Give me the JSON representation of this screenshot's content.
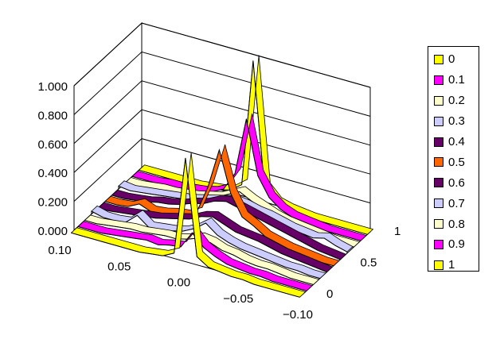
{
  "chart_data": {
    "type": "surface-3d",
    "z_tick_labels": [
      "0.000",
      "0.200",
      "0.400",
      "0.600",
      "0.800",
      "1.000"
    ],
    "zlim": [
      0,
      1
    ],
    "x_tick_labels": [
      "0.10",
      "0.05",
      "0.00",
      "−0.05",
      "−0.10"
    ],
    "xlim": [
      0.1,
      -0.1
    ],
    "x": [
      0.1,
      0.09,
      0.08,
      0.07,
      0.06,
      0.05,
      0.04,
      0.03,
      0.02,
      0.01,
      0.0,
      -0.01,
      -0.02,
      -0.03,
      -0.04,
      -0.05,
      -0.06,
      -0.07,
      -0.08,
      -0.09,
      -0.1
    ],
    "depth_tick_labels": [
      "0",
      "0.5",
      "1"
    ],
    "depth_lim": [
      0,
      1
    ],
    "grid": true,
    "legend_position": "right",
    "series": [
      {
        "name": "0",
        "color": "#FFFF00",
        "values": [
          0.0,
          0.0,
          0.0,
          0.0,
          0.0,
          0.0,
          0.0,
          0.01,
          0.02,
          0.06,
          0.74,
          0.08,
          0.03,
          0.02,
          0.01,
          0.01,
          0.0,
          0.0,
          0.0,
          0.0,
          0.0
        ]
      },
      {
        "name": "0.1",
        "color": "#FF00FF",
        "values": [
          0.0,
          0.0,
          0.0,
          0.01,
          0.02,
          0.03,
          0.04,
          0.03,
          0.05,
          0.06,
          0.18,
          0.1,
          0.06,
          0.03,
          0.02,
          0.01,
          0.01,
          0.0,
          0.0,
          0.0,
          0.0
        ]
      },
      {
        "name": "0.2",
        "color": "#FFFFCC",
        "values": [
          0.0,
          0.0,
          0.01,
          0.02,
          0.03,
          0.03,
          0.04,
          0.05,
          0.05,
          0.07,
          0.1,
          0.09,
          0.06,
          0.05,
          0.03,
          0.02,
          0.02,
          0.01,
          0.0,
          0.0,
          0.0
        ]
      },
      {
        "name": "0.3",
        "color": "#CCCCFF",
        "values": [
          0.02,
          0.0,
          0.0,
          0.01,
          0.08,
          0.02,
          0.03,
          0.04,
          0.06,
          0.1,
          0.16,
          0.1,
          0.07,
          0.05,
          0.04,
          0.03,
          0.02,
          0.01,
          0.01,
          0.0,
          0.0
        ]
      },
      {
        "name": "0.4",
        "color": "#660066",
        "values": [
          0.0,
          0.0,
          0.01,
          0.02,
          0.03,
          0.04,
          0.06,
          0.08,
          0.1,
          0.14,
          0.16,
          0.13,
          0.1,
          0.09,
          0.08,
          0.06,
          0.04,
          0.03,
          0.02,
          0.01,
          0.0
        ]
      },
      {
        "name": "0.5",
        "color": "#FF6600",
        "values": [
          0.0,
          0.0,
          0.01,
          0.05,
          0.02,
          0.03,
          0.05,
          0.06,
          0.1,
          0.3,
          0.58,
          0.3,
          0.16,
          0.12,
          0.07,
          0.05,
          0.03,
          0.02,
          0.01,
          0.0,
          0.0
        ]
      },
      {
        "name": "0.6",
        "color": "#660066",
        "values": [
          0.0,
          0.0,
          0.01,
          0.02,
          0.04,
          0.05,
          0.07,
          0.1,
          0.12,
          0.16,
          0.18,
          0.16,
          0.14,
          0.12,
          0.1,
          0.08,
          0.06,
          0.04,
          0.02,
          0.01,
          0.0
        ]
      },
      {
        "name": "0.7",
        "color": "#CCCCFF",
        "values": [
          0.02,
          0.01,
          0.02,
          0.03,
          0.04,
          0.05,
          0.06,
          0.08,
          0.1,
          0.12,
          0.14,
          0.13,
          0.11,
          0.1,
          0.08,
          0.06,
          0.05,
          0.04,
          0.06,
          0.03,
          0.01
        ]
      },
      {
        "name": "0.8",
        "color": "#FFFFCC",
        "values": [
          0.0,
          0.0,
          0.01,
          0.02,
          0.02,
          0.03,
          0.04,
          0.06,
          0.08,
          0.12,
          0.16,
          0.12,
          0.09,
          0.06,
          0.04,
          0.03,
          0.02,
          0.01,
          0.0,
          0.0,
          0.0
        ]
      },
      {
        "name": "0.9",
        "color": "#FF00FF",
        "values": [
          0.0,
          0.0,
          0.0,
          0.01,
          0.01,
          0.02,
          0.03,
          0.05,
          0.09,
          0.22,
          0.62,
          0.25,
          0.12,
          0.06,
          0.03,
          0.02,
          0.01,
          0.0,
          0.0,
          0.0,
          0.0
        ]
      },
      {
        "name": "1",
        "color": "#FFFF00",
        "values": [
          0.0,
          0.0,
          0.0,
          0.0,
          0.0,
          0.0,
          0.01,
          0.02,
          0.04,
          0.1,
          0.98,
          0.12,
          0.04,
          0.02,
          0.01,
          0.0,
          0.0,
          0.0,
          0.0,
          0.0,
          0.0
        ]
      }
    ]
  }
}
